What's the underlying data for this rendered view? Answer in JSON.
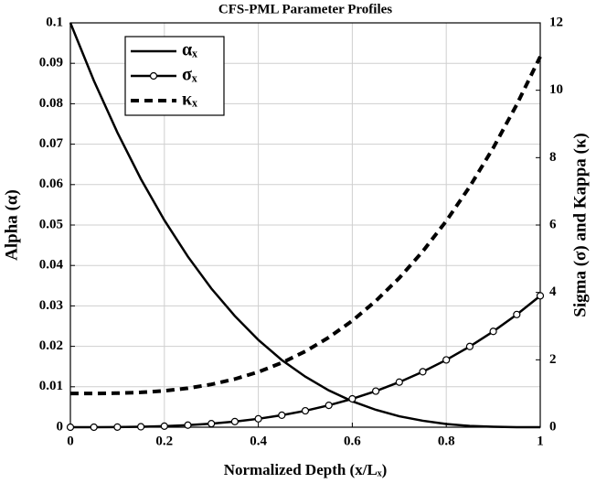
{
  "chart_data": {
    "type": "line",
    "title": "CFS-PML Parameter Profiles",
    "xlabel": "Normalized Depth (x/Lₓ)",
    "ylabel": "Alpha (α)",
    "y2label": "Sigma (σ) and Kappa (κ)",
    "x": [
      0,
      0.05,
      0.1,
      0.15,
      0.2,
      0.25,
      0.3,
      0.35,
      0.4,
      0.45,
      0.5,
      0.55,
      0.6,
      0.65,
      0.7,
      0.75,
      0.8,
      0.85,
      0.9,
      0.95,
      1
    ],
    "series": [
      {
        "name": "αₓ",
        "color": "#000000",
        "line_style": "solid",
        "marker": "none",
        "values": [
          0.1,
          0.0857,
          0.0729,
          0.0614,
          0.0512,
          0.0422,
          0.0343,
          0.0275,
          0.0216,
          0.0166,
          0.0125,
          0.0091,
          0.0064,
          0.0043,
          0.0027,
          0.0016,
          0.0008,
          0.0003,
          0.0001,
          0,
          0
        ]
      },
      {
        "name": "σₓ",
        "color": "#000000",
        "line_style": "solid",
        "marker": "o",
        "axis": "y2",
        "values": [
          0,
          0.0005,
          0.0039,
          0.0132,
          0.0312,
          0.0609,
          0.1053,
          0.1672,
          0.2496,
          0.3554,
          0.4875,
          0.6489,
          0.8424,
          1.071,
          1.3377,
          1.6453,
          1.9968,
          2.3951,
          2.8431,
          3.3438,
          3.9
        ]
      },
      {
        "name": "κₓ",
        "color": "#000000",
        "line_style": "dashed",
        "marker": "none",
        "axis": "y2",
        "values": [
          1,
          1.0013,
          1.01,
          1.0338,
          1.08,
          1.1563,
          1.27,
          1.4288,
          1.64,
          1.9113,
          2.25,
          2.6638,
          3.16,
          3.7463,
          4.43,
          5.2188,
          6.12,
          7.1413,
          8.29,
          9.5738,
          11
        ]
      }
    ],
    "xlim": [
      0,
      1
    ],
    "xticks": [
      0,
      0.2,
      0.4,
      0.6,
      0.8,
      1
    ],
    "ylim": [
      0,
      0.1
    ],
    "yticks": [
      0,
      0.01,
      0.02,
      0.03,
      0.04,
      0.05,
      0.06,
      0.07,
      0.08,
      0.09,
      0.1
    ],
    "y2lim": [
      0,
      12
    ],
    "y2ticks": [
      0,
      2,
      4,
      6,
      8,
      10,
      12
    ],
    "grid": true,
    "legend": "upper left"
  }
}
